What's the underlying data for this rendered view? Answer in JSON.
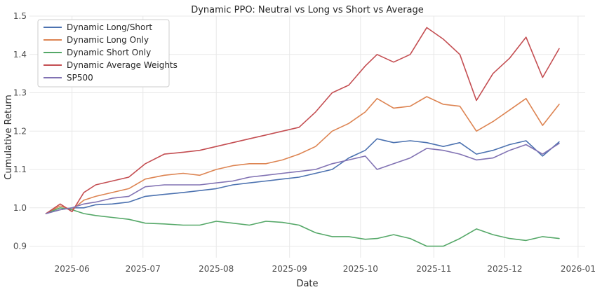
{
  "chart_data": {
    "type": "line",
    "title": "Dynamic PPO: Neutral vs Long vs Short vs Average",
    "xlabel": "Date",
    "ylabel": "Cumulative Return",
    "xlim": [
      "2025-05-14",
      "2026-01-04"
    ],
    "ylim": [
      0.87,
      1.5
    ],
    "grid": true,
    "legend_position": "top-left",
    "x_ticks": [
      "2025-06-01",
      "2025-07-01",
      "2025-08-01",
      "2025-09-01",
      "2025-10-01",
      "2025-11-01",
      "2025-12-01",
      "2026-01-01"
    ],
    "x_tick_labels": [
      "2025-06",
      "2025-07",
      "2025-08",
      "2025-09",
      "2025-10",
      "2025-11",
      "2025-12",
      "2026-01"
    ],
    "y_ticks": [
      0.9,
      1.0,
      1.1,
      1.2,
      1.3,
      1.4,
      1.5
    ],
    "y_tick_labels": [
      "0.9",
      "1.0",
      "1.1",
      "1.2",
      "1.3",
      "1.4",
      "1.5"
    ],
    "series": [
      {
        "name": "Dynamic Long/Short",
        "color": "#4c72b0",
        "points": [
          [
            "2025-05-21",
            0.985
          ],
          [
            "2025-05-27",
            0.995
          ],
          [
            "2025-06-01",
            1.0
          ],
          [
            "2025-06-06",
            1.0
          ],
          [
            "2025-06-11",
            1.008
          ],
          [
            "2025-06-18",
            1.01
          ],
          [
            "2025-06-25",
            1.015
          ],
          [
            "2025-07-02",
            1.03
          ],
          [
            "2025-07-10",
            1.035
          ],
          [
            "2025-07-18",
            1.04
          ],
          [
            "2025-07-25",
            1.045
          ],
          [
            "2025-08-01",
            1.05
          ],
          [
            "2025-08-08",
            1.06
          ],
          [
            "2025-08-15",
            1.065
          ],
          [
            "2025-08-22",
            1.07
          ],
          [
            "2025-08-29",
            1.075
          ],
          [
            "2025-09-05",
            1.08
          ],
          [
            "2025-09-12",
            1.09
          ],
          [
            "2025-09-19",
            1.1
          ],
          [
            "2025-09-26",
            1.13
          ],
          [
            "2025-10-03",
            1.15
          ],
          [
            "2025-10-08",
            1.18
          ],
          [
            "2025-10-15",
            1.17
          ],
          [
            "2025-10-22",
            1.175
          ],
          [
            "2025-10-29",
            1.17
          ],
          [
            "2025-11-05",
            1.16
          ],
          [
            "2025-11-12",
            1.17
          ],
          [
            "2025-11-19",
            1.14
          ],
          [
            "2025-11-26",
            1.15
          ],
          [
            "2025-12-03",
            1.165
          ],
          [
            "2025-12-10",
            1.175
          ],
          [
            "2025-12-17",
            1.135
          ],
          [
            "2025-12-24",
            1.172
          ]
        ]
      },
      {
        "name": "Dynamic Long Only",
        "color": "#dd8452",
        "points": [
          [
            "2025-05-21",
            0.985
          ],
          [
            "2025-05-27",
            1.005
          ],
          [
            "2025-06-01",
            0.995
          ],
          [
            "2025-06-06",
            1.02
          ],
          [
            "2025-06-11",
            1.03
          ],
          [
            "2025-06-18",
            1.04
          ],
          [
            "2025-06-25",
            1.05
          ],
          [
            "2025-07-02",
            1.075
          ],
          [
            "2025-07-10",
            1.085
          ],
          [
            "2025-07-18",
            1.09
          ],
          [
            "2025-07-25",
            1.085
          ],
          [
            "2025-08-01",
            1.1
          ],
          [
            "2025-08-08",
            1.11
          ],
          [
            "2025-08-15",
            1.115
          ],
          [
            "2025-08-22",
            1.115
          ],
          [
            "2025-08-29",
            1.125
          ],
          [
            "2025-09-05",
            1.14
          ],
          [
            "2025-09-12",
            1.16
          ],
          [
            "2025-09-19",
            1.2
          ],
          [
            "2025-09-26",
            1.22
          ],
          [
            "2025-10-03",
            1.25
          ],
          [
            "2025-10-08",
            1.285
          ],
          [
            "2025-10-15",
            1.26
          ],
          [
            "2025-10-22",
            1.265
          ],
          [
            "2025-10-29",
            1.29
          ],
          [
            "2025-11-05",
            1.27
          ],
          [
            "2025-11-12",
            1.265
          ],
          [
            "2025-11-19",
            1.2
          ],
          [
            "2025-11-26",
            1.225
          ],
          [
            "2025-12-03",
            1.255
          ],
          [
            "2025-12-10",
            1.285
          ],
          [
            "2025-12-17",
            1.215
          ],
          [
            "2025-12-24",
            1.27
          ]
        ]
      },
      {
        "name": "Dynamic Short Only",
        "color": "#55a868",
        "points": [
          [
            "2025-05-21",
            0.985
          ],
          [
            "2025-05-27",
            1.0
          ],
          [
            "2025-06-01",
            0.995
          ],
          [
            "2025-06-06",
            0.985
          ],
          [
            "2025-06-11",
            0.98
          ],
          [
            "2025-06-18",
            0.975
          ],
          [
            "2025-06-25",
            0.97
          ],
          [
            "2025-07-02",
            0.96
          ],
          [
            "2025-07-10",
            0.958
          ],
          [
            "2025-07-18",
            0.955
          ],
          [
            "2025-07-25",
            0.955
          ],
          [
            "2025-08-01",
            0.965
          ],
          [
            "2025-08-08",
            0.96
          ],
          [
            "2025-08-15",
            0.955
          ],
          [
            "2025-08-22",
            0.965
          ],
          [
            "2025-08-29",
            0.962
          ],
          [
            "2025-09-05",
            0.955
          ],
          [
            "2025-09-12",
            0.935
          ],
          [
            "2025-09-19",
            0.925
          ],
          [
            "2025-09-26",
            0.925
          ],
          [
            "2025-10-03",
            0.918
          ],
          [
            "2025-10-08",
            0.92
          ],
          [
            "2025-10-15",
            0.93
          ],
          [
            "2025-10-22",
            0.92
          ],
          [
            "2025-10-29",
            0.9
          ],
          [
            "2025-11-05",
            0.9
          ],
          [
            "2025-11-12",
            0.92
          ],
          [
            "2025-11-19",
            0.945
          ],
          [
            "2025-11-26",
            0.93
          ],
          [
            "2025-12-03",
            0.92
          ],
          [
            "2025-12-10",
            0.915
          ],
          [
            "2025-12-17",
            0.925
          ],
          [
            "2025-12-24",
            0.92
          ]
        ]
      },
      {
        "name": "Dynamic Average Weights",
        "color": "#c44e52",
        "points": [
          [
            "2025-05-21",
            0.985
          ],
          [
            "2025-05-27",
            1.01
          ],
          [
            "2025-06-01",
            0.99
          ],
          [
            "2025-06-06",
            1.04
          ],
          [
            "2025-06-11",
            1.06
          ],
          [
            "2025-06-18",
            1.07
          ],
          [
            "2025-06-25",
            1.08
          ],
          [
            "2025-07-02",
            1.115
          ],
          [
            "2025-07-10",
            1.14
          ],
          [
            "2025-07-18",
            1.145
          ],
          [
            "2025-07-25",
            1.15
          ],
          [
            "2025-08-01",
            1.16
          ],
          [
            "2025-08-08",
            1.17
          ],
          [
            "2025-08-15",
            1.18
          ],
          [
            "2025-08-22",
            1.19
          ],
          [
            "2025-08-29",
            1.2
          ],
          [
            "2025-09-05",
            1.21
          ],
          [
            "2025-09-12",
            1.25
          ],
          [
            "2025-09-19",
            1.3
          ],
          [
            "2025-09-26",
            1.32
          ],
          [
            "2025-10-03",
            1.37
          ],
          [
            "2025-10-08",
            1.4
          ],
          [
            "2025-10-15",
            1.38
          ],
          [
            "2025-10-22",
            1.4
          ],
          [
            "2025-10-29",
            1.47
          ],
          [
            "2025-11-05",
            1.44
          ],
          [
            "2025-11-12",
            1.4
          ],
          [
            "2025-11-19",
            1.28
          ],
          [
            "2025-11-26",
            1.35
          ],
          [
            "2025-12-03",
            1.39
          ],
          [
            "2025-12-10",
            1.445
          ],
          [
            "2025-12-17",
            1.34
          ],
          [
            "2025-12-24",
            1.415
          ]
        ]
      },
      {
        "name": "SP500",
        "color": "#8172b3",
        "points": [
          [
            "2025-05-21",
            0.985
          ],
          [
            "2025-05-27",
            0.995
          ],
          [
            "2025-06-01",
            1.0
          ],
          [
            "2025-06-06",
            1.01
          ],
          [
            "2025-06-11",
            1.015
          ],
          [
            "2025-06-18",
            1.025
          ],
          [
            "2025-06-25",
            1.03
          ],
          [
            "2025-07-02",
            1.055
          ],
          [
            "2025-07-10",
            1.06
          ],
          [
            "2025-07-18",
            1.06
          ],
          [
            "2025-07-25",
            1.06
          ],
          [
            "2025-08-01",
            1.065
          ],
          [
            "2025-08-08",
            1.07
          ],
          [
            "2025-08-15",
            1.08
          ],
          [
            "2025-08-22",
            1.085
          ],
          [
            "2025-08-29",
            1.09
          ],
          [
            "2025-09-05",
            1.095
          ],
          [
            "2025-09-12",
            1.1
          ],
          [
            "2025-09-19",
            1.115
          ],
          [
            "2025-09-26",
            1.125
          ],
          [
            "2025-10-03",
            1.135
          ],
          [
            "2025-10-08",
            1.1
          ],
          [
            "2025-10-15",
            1.115
          ],
          [
            "2025-10-22",
            1.13
          ],
          [
            "2025-10-29",
            1.155
          ],
          [
            "2025-11-05",
            1.15
          ],
          [
            "2025-11-12",
            1.14
          ],
          [
            "2025-11-19",
            1.125
          ],
          [
            "2025-11-26",
            1.13
          ],
          [
            "2025-12-03",
            1.15
          ],
          [
            "2025-12-10",
            1.165
          ],
          [
            "2025-12-17",
            1.14
          ],
          [
            "2025-12-24",
            1.168
          ]
        ]
      }
    ]
  }
}
